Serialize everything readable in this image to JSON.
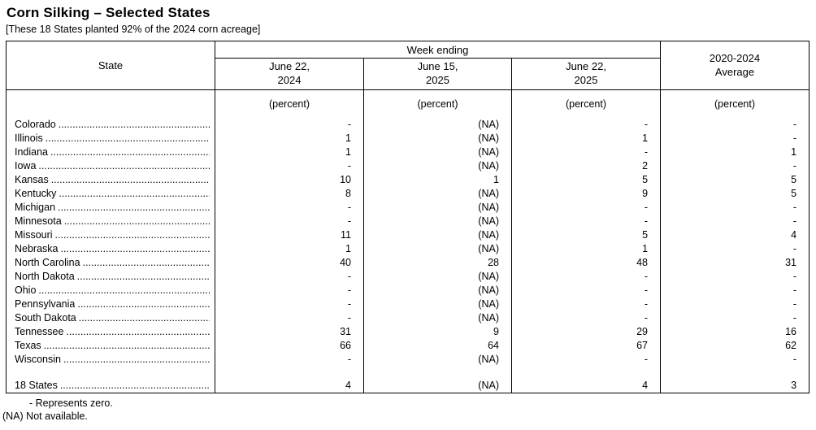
{
  "title": "Corn Silking – Selected States",
  "subtitle": "[These 18 States planted 92% of the 2024 corn acreage]",
  "table": {
    "state_header": "State",
    "week_ending_label": "Week ending",
    "columns": [
      {
        "line1": "June 22,",
        "line2": "2024"
      },
      {
        "line1": "June 15,",
        "line2": "2025"
      },
      {
        "line1": "June 22,",
        "line2": "2025"
      }
    ],
    "average_header": {
      "line1": "2020-2024",
      "line2": "Average"
    },
    "unit_label": "(percent)",
    "rows": [
      {
        "state": "Colorado",
        "values": [
          "-",
          "(NA)",
          "-",
          "-"
        ]
      },
      {
        "state": "Illinois",
        "values": [
          "1",
          "(NA)",
          "1",
          "-"
        ]
      },
      {
        "state": "Indiana",
        "values": [
          "1",
          "(NA)",
          "-",
          "1"
        ]
      },
      {
        "state": "Iowa",
        "values": [
          "-",
          "(NA)",
          "2",
          "-"
        ]
      },
      {
        "state": "Kansas",
        "values": [
          "10",
          "1",
          "5",
          "5"
        ]
      },
      {
        "state": "Kentucky",
        "values": [
          "8",
          "(NA)",
          "9",
          "5"
        ]
      },
      {
        "state": "Michigan",
        "values": [
          "-",
          "(NA)",
          "-",
          "-"
        ]
      },
      {
        "state": "Minnesota",
        "values": [
          "-",
          "(NA)",
          "-",
          "-"
        ]
      },
      {
        "state": "Missouri",
        "values": [
          "11",
          "(NA)",
          "5",
          "4"
        ]
      },
      {
        "state": "Nebraska",
        "values": [
          "1",
          "(NA)",
          "1",
          "-"
        ]
      },
      {
        "state": "North Carolina",
        "values": [
          "40",
          "28",
          "48",
          "31"
        ]
      },
      {
        "state": "North Dakota",
        "values": [
          "-",
          "(NA)",
          "-",
          "-"
        ]
      },
      {
        "state": "Ohio",
        "values": [
          "-",
          "(NA)",
          "-",
          "-"
        ]
      },
      {
        "state": "Pennsylvania",
        "values": [
          "-",
          "(NA)",
          "-",
          "-"
        ]
      },
      {
        "state": "South Dakota",
        "values": [
          "-",
          "(NA)",
          "-",
          "-"
        ]
      },
      {
        "state": "Tennessee",
        "values": [
          "31",
          "9",
          "29",
          "16"
        ]
      },
      {
        "state": "Texas",
        "values": [
          "66",
          "64",
          "67",
          "62"
        ]
      },
      {
        "state": "Wisconsin",
        "values": [
          "-",
          "(NA)",
          "-",
          "-"
        ]
      }
    ],
    "total_row": {
      "state": "18 States",
      "values": [
        "4",
        "(NA)",
        "4",
        "3"
      ]
    }
  },
  "footnotes": {
    "zero": "- Represents zero.",
    "na": "(NA) Not available."
  },
  "colors": {
    "text": "#000000",
    "background": "#ffffff",
    "border": "#000000"
  }
}
